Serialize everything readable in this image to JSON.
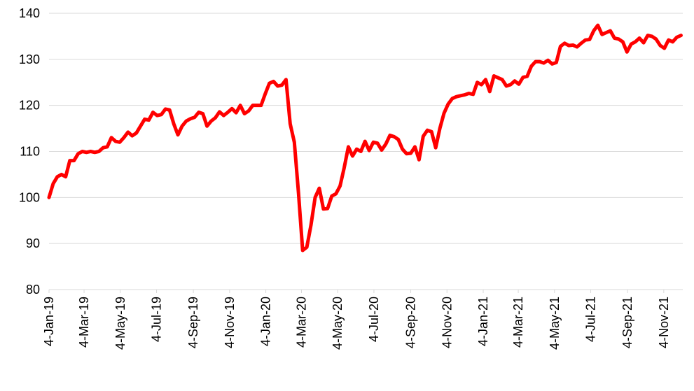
{
  "chart_data": {
    "type": "line",
    "x": [
      "2019-01-04",
      "2019-01-11",
      "2019-01-18",
      "2019-01-25",
      "2019-02-01",
      "2019-02-08",
      "2019-02-15",
      "2019-02-22",
      "2019-03-01",
      "2019-03-08",
      "2019-03-15",
      "2019-03-22",
      "2019-03-29",
      "2019-04-05",
      "2019-04-12",
      "2019-04-19",
      "2019-04-26",
      "2019-05-03",
      "2019-05-10",
      "2019-05-17",
      "2019-05-24",
      "2019-05-31",
      "2019-06-07",
      "2019-06-14",
      "2019-06-21",
      "2019-06-28",
      "2019-07-05",
      "2019-07-12",
      "2019-07-19",
      "2019-07-26",
      "2019-08-02",
      "2019-08-09",
      "2019-08-16",
      "2019-08-23",
      "2019-08-30",
      "2019-09-06",
      "2019-09-13",
      "2019-09-20",
      "2019-09-27",
      "2019-10-04",
      "2019-10-11",
      "2019-10-18",
      "2019-10-25",
      "2019-11-01",
      "2019-11-08",
      "2019-11-15",
      "2019-11-22",
      "2019-11-29",
      "2019-12-06",
      "2019-12-13",
      "2019-12-20",
      "2019-12-27",
      "2020-01-03",
      "2020-01-10",
      "2020-01-17",
      "2020-01-24",
      "2020-01-31",
      "2020-02-07",
      "2020-02-14",
      "2020-02-21",
      "2020-02-28",
      "2020-03-06",
      "2020-03-13",
      "2020-03-20",
      "2020-03-27",
      "2020-04-03",
      "2020-04-10",
      "2020-04-17",
      "2020-04-24",
      "2020-05-01",
      "2020-05-08",
      "2020-05-15",
      "2020-05-22",
      "2020-05-29",
      "2020-06-05",
      "2020-06-12",
      "2020-06-19",
      "2020-06-26",
      "2020-07-03",
      "2020-07-10",
      "2020-07-17",
      "2020-07-24",
      "2020-07-31",
      "2020-08-07",
      "2020-08-14",
      "2020-08-21",
      "2020-08-28",
      "2020-09-04",
      "2020-09-11",
      "2020-09-18",
      "2020-09-25",
      "2020-10-02",
      "2020-10-09",
      "2020-10-16",
      "2020-10-23",
      "2020-10-30",
      "2020-11-06",
      "2020-11-13",
      "2020-11-20",
      "2020-11-27",
      "2020-12-04",
      "2020-12-11",
      "2020-12-18",
      "2020-12-25",
      "2021-01-01",
      "2021-01-08",
      "2021-01-15",
      "2021-01-22",
      "2021-01-29",
      "2021-02-05",
      "2021-02-12",
      "2021-02-19",
      "2021-02-26",
      "2021-03-05",
      "2021-03-12",
      "2021-03-19",
      "2021-03-26",
      "2021-04-02",
      "2021-04-09",
      "2021-04-16",
      "2021-04-23",
      "2021-04-30",
      "2021-05-07",
      "2021-05-14",
      "2021-05-21",
      "2021-05-28",
      "2021-06-04",
      "2021-06-11",
      "2021-06-18",
      "2021-06-25",
      "2021-07-02",
      "2021-07-09",
      "2021-07-16",
      "2021-07-23",
      "2021-07-30",
      "2021-08-06",
      "2021-08-13",
      "2021-08-20",
      "2021-08-27",
      "2021-09-03",
      "2021-09-10",
      "2021-09-17",
      "2021-09-24",
      "2021-10-01",
      "2021-10-08",
      "2021-10-15",
      "2021-10-22",
      "2021-10-29",
      "2021-11-05",
      "2021-11-12",
      "2021-11-19",
      "2021-11-26",
      "2021-12-03"
    ],
    "series": [
      {
        "color": "#ff0000",
        "values": [
          100,
          103,
          104.5,
          105,
          104.5,
          108,
          108,
          109.5,
          110,
          109.8,
          110,
          109.8,
          110,
          110.8,
          111,
          113,
          112.2,
          112,
          113,
          114.2,
          113.4,
          114,
          115.5,
          117,
          116.8,
          118.5,
          117.8,
          118,
          119.2,
          119,
          116,
          113.6,
          115.5,
          116.6,
          117.1,
          117.4,
          118.5,
          118.2,
          115.5,
          116.6,
          117.3,
          118.6,
          117.8,
          118.5,
          119.3,
          118.4,
          120,
          118.2,
          118.8,
          120,
          120,
          120,
          122.5,
          124.8,
          125.2,
          124.2,
          124.4,
          125.6,
          116,
          112,
          101,
          88.5,
          89.2,
          94,
          100,
          102,
          97.5,
          97.6,
          100.3,
          100.8,
          102.5,
          106.5,
          111,
          109,
          110.5,
          110,
          112.2,
          110.2,
          112,
          111.8,
          110.3,
          111.6,
          113.5,
          113.2,
          112.6,
          110.5,
          109.5,
          109.6,
          111,
          108.2,
          113.3,
          114.6,
          114.3,
          110.8,
          115,
          118.3,
          120.3,
          121.5,
          121.9,
          122.1,
          122.3,
          122.6,
          122.4,
          125,
          124.5,
          125.6,
          123,
          126.4,
          126,
          125.6,
          124.2,
          124.5,
          125.3,
          124.6,
          126.1,
          126.3,
          128.5,
          129.5,
          129.5,
          129.2,
          129.8,
          129,
          129.3,
          132.8,
          133.5,
          133,
          133.1,
          132.7,
          133.5,
          134.2,
          134.3,
          136.2,
          137.4,
          135.4,
          135.8,
          136.2,
          134.6,
          134.4,
          133.8,
          131.6,
          133.3,
          133.8,
          134.6,
          133.6,
          135.2,
          135,
          134.4,
          133,
          132.4,
          134.2,
          133.8,
          134.8,
          135.2
        ]
      }
    ],
    "xlim": [
      "2019-01-04",
      "2021-12-06"
    ],
    "xticks": [
      {
        "value": "2019-01-04",
        "label": "4-Jan-19"
      },
      {
        "value": "2019-03-04",
        "label": "4-Mar-19"
      },
      {
        "value": "2019-05-04",
        "label": "4-May-19"
      },
      {
        "value": "2019-07-04",
        "label": "4-Jul-19"
      },
      {
        "value": "2019-09-04",
        "label": "4-Sep-19"
      },
      {
        "value": "2019-11-04",
        "label": "4-Nov-19"
      },
      {
        "value": "2020-01-04",
        "label": "4-Jan-20"
      },
      {
        "value": "2020-03-04",
        "label": "4-Mar-20"
      },
      {
        "value": "2020-05-04",
        "label": "4-May-20"
      },
      {
        "value": "2020-07-04",
        "label": "4-Jul-20"
      },
      {
        "value": "2020-09-04",
        "label": "4-Sep-20"
      },
      {
        "value": "2020-11-04",
        "label": "4-Nov-20"
      },
      {
        "value": "2021-01-04",
        "label": "4-Jan-21"
      },
      {
        "value": "2021-03-04",
        "label": "4-Mar-21"
      },
      {
        "value": "2021-05-04",
        "label": "4-May-21"
      },
      {
        "value": "2021-07-04",
        "label": "4-Jul-21"
      },
      {
        "value": "2021-09-04",
        "label": "4-Sep-21"
      },
      {
        "value": "2021-11-04",
        "label": "4-Nov-21"
      }
    ],
    "ylim": [
      80,
      140
    ],
    "yticks": [
      80,
      90,
      100,
      110,
      120,
      130,
      140
    ],
    "grid": true
  }
}
